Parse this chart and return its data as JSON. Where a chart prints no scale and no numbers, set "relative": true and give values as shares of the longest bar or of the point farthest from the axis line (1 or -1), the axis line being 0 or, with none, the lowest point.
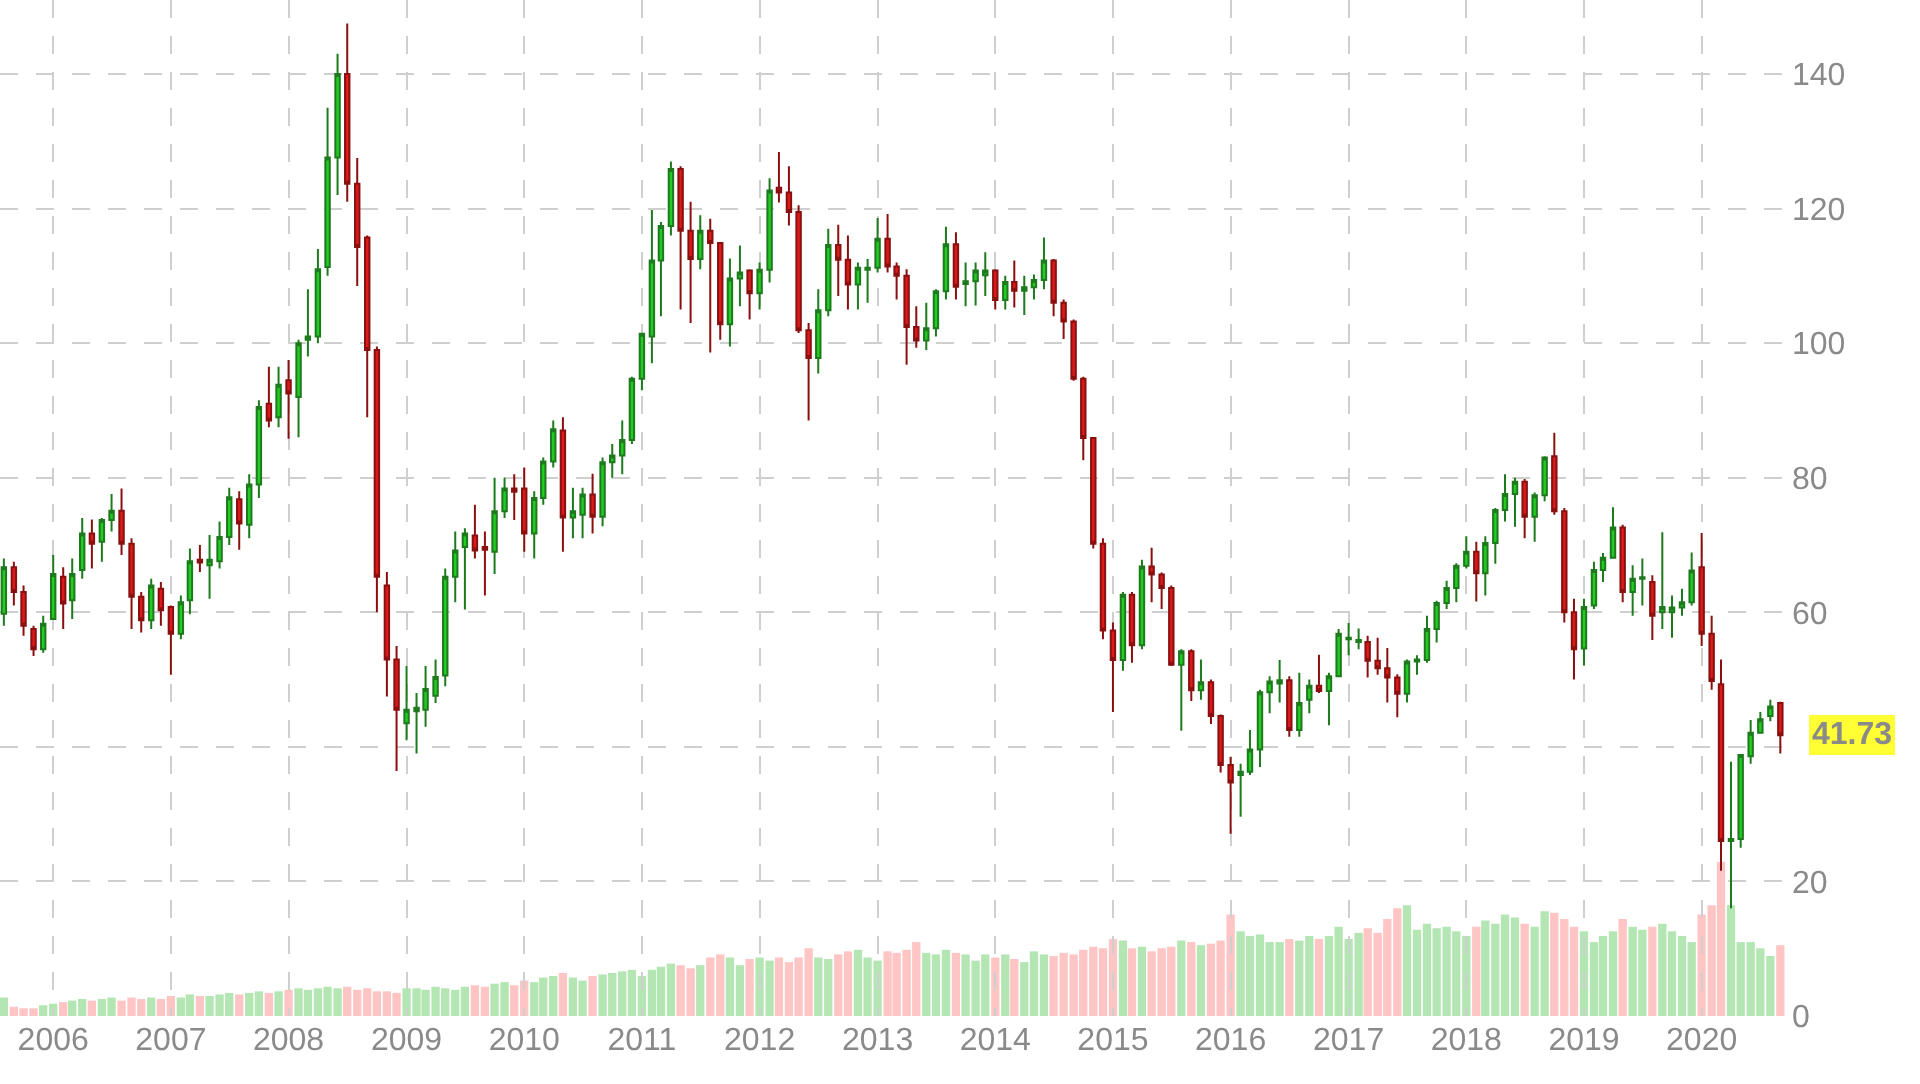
{
  "chart_data": [
    {
      "type": "candlestick",
      "x": [
        "2005-08",
        "2005-09",
        "2005-10",
        "2005-11",
        "2005-12",
        "2006-01",
        "2006-02",
        "2006-03",
        "2006-04",
        "2006-05",
        "2006-06",
        "2006-07",
        "2006-08",
        "2006-09",
        "2006-10",
        "2006-11",
        "2006-12",
        "2007-01",
        "2007-02",
        "2007-03",
        "2007-04",
        "2007-05",
        "2007-06",
        "2007-07",
        "2007-08",
        "2007-09",
        "2007-10",
        "2007-11",
        "2007-12",
        "2008-01",
        "2008-02",
        "2008-03",
        "2008-04",
        "2008-05",
        "2008-06",
        "2008-07",
        "2008-08",
        "2008-09",
        "2008-10",
        "2008-11",
        "2008-12",
        "2009-01",
        "2009-02",
        "2009-03",
        "2009-04",
        "2009-05",
        "2009-06",
        "2009-07",
        "2009-08",
        "2009-09",
        "2009-10",
        "2009-11",
        "2009-12",
        "2010-01",
        "2010-02",
        "2010-03",
        "2010-04",
        "2010-05",
        "2010-06",
        "2010-07",
        "2010-08",
        "2010-09",
        "2010-10",
        "2010-11",
        "2010-12",
        "2011-01",
        "2011-02",
        "2011-03",
        "2011-04",
        "2011-05",
        "2011-06",
        "2011-07",
        "2011-08",
        "2011-09",
        "2011-10",
        "2011-11",
        "2011-12",
        "2012-01",
        "2012-02",
        "2012-03",
        "2012-04",
        "2012-05",
        "2012-06",
        "2012-07",
        "2012-08",
        "2012-09",
        "2012-10",
        "2012-11",
        "2012-12",
        "2013-01",
        "2013-02",
        "2013-03",
        "2013-04",
        "2013-05",
        "2013-06",
        "2013-07",
        "2013-08",
        "2013-09",
        "2013-10",
        "2013-11",
        "2013-12",
        "2014-01",
        "2014-02",
        "2014-03",
        "2014-04",
        "2014-05",
        "2014-06",
        "2014-07",
        "2014-08",
        "2014-09",
        "2014-10",
        "2014-11",
        "2014-12",
        "2015-01",
        "2015-02",
        "2015-03",
        "2015-04",
        "2015-05",
        "2015-06",
        "2015-07",
        "2015-08",
        "2015-09",
        "2015-10",
        "2015-11",
        "2015-12",
        "2016-01",
        "2016-02",
        "2016-03",
        "2016-04",
        "2016-05",
        "2016-06",
        "2016-07",
        "2016-08",
        "2016-09",
        "2016-10",
        "2016-11",
        "2016-12",
        "2017-01",
        "2017-02",
        "2017-03",
        "2017-04",
        "2017-05",
        "2017-06",
        "2017-07",
        "2017-08",
        "2017-09",
        "2017-10",
        "2017-11",
        "2017-12",
        "2018-01",
        "2018-02",
        "2018-03",
        "2018-04",
        "2018-05",
        "2018-06",
        "2018-07",
        "2018-08",
        "2018-09",
        "2018-10",
        "2018-11",
        "2018-12",
        "2019-01",
        "2019-02",
        "2019-03",
        "2019-04",
        "2019-05",
        "2019-06",
        "2019-07",
        "2019-08",
        "2019-09",
        "2019-10",
        "2019-11",
        "2019-12",
        "2020-01",
        "2020-02",
        "2020-03",
        "2020-04",
        "2020-05",
        "2020-06",
        "2020-07",
        "2020-08",
        "2020-09"
      ],
      "ohlc": [
        [
          59.8,
          68,
          58,
          66.7
        ],
        [
          66.7,
          67.5,
          61,
          63
        ],
        [
          63,
          64,
          56.5,
          58
        ],
        [
          57.5,
          58,
          53.5,
          54.5
        ],
        [
          54.5,
          59.5,
          54,
          58.3
        ],
        [
          59,
          68.5,
          59,
          65.7
        ],
        [
          65.3,
          66.7,
          57.5,
          61.3
        ],
        [
          61.8,
          68,
          59,
          65.7
        ],
        [
          66.3,
          74,
          65,
          71.7
        ],
        [
          71.7,
          73.8,
          66.5,
          70.2
        ],
        [
          70.5,
          74,
          67.5,
          73.7
        ],
        [
          73.7,
          77.6,
          72,
          75.1
        ],
        [
          75.1,
          78.4,
          68.5,
          70.2
        ],
        [
          70.2,
          71,
          57.5,
          62.3
        ],
        [
          62.3,
          63,
          57,
          58.8
        ],
        [
          58.8,
          65,
          57.5,
          64
        ],
        [
          63.5,
          64.5,
          58,
          60.3
        ],
        [
          60.8,
          61,
          50.7,
          56.8
        ],
        [
          56.8,
          62.5,
          56,
          61.5
        ],
        [
          61.8,
          69.5,
          59.7,
          67.6
        ],
        [
          67.8,
          70,
          66,
          67.4
        ],
        [
          67,
          71.5,
          62,
          67.8
        ],
        [
          67.6,
          73.5,
          66.5,
          71.2
        ],
        [
          71.2,
          78.5,
          70,
          77.1
        ],
        [
          76.8,
          78,
          69.3,
          73.2
        ],
        [
          73,
          80.5,
          71,
          79
        ],
        [
          79,
          91.5,
          77,
          90.5
        ],
        [
          91,
          96.5,
          87.5,
          88.5
        ],
        [
          89,
          96.5,
          87.5,
          93.8
        ],
        [
          94.5,
          97.5,
          85.8,
          92.5
        ],
        [
          92,
          100.5,
          86,
          100
        ],
        [
          100.5,
          108,
          98,
          101
        ],
        [
          101,
          114,
          100,
          111
        ],
        [
          111.3,
          135,
          110,
          127.6
        ],
        [
          127.6,
          143,
          122,
          140
        ],
        [
          140,
          147.5,
          121,
          123.7
        ],
        [
          123.7,
          127.5,
          108.5,
          114.3
        ],
        [
          115.7,
          116,
          89,
          99
        ],
        [
          99,
          99.5,
          60,
          65.3
        ],
        [
          64,
          66,
          47.5,
          53
        ],
        [
          53,
          55,
          36.4,
          45.5
        ],
        [
          43.5,
          52,
          41,
          45.5
        ],
        [
          45.3,
          48,
          39,
          45.8
        ],
        [
          45.5,
          52,
          43,
          48.6
        ],
        [
          47.6,
          53,
          46.5,
          50.4
        ],
        [
          50.6,
          66.5,
          49,
          65.3
        ],
        [
          65.3,
          72,
          61.5,
          69.2
        ],
        [
          69.7,
          72.5,
          60.4,
          71.7
        ],
        [
          71.4,
          76,
          68,
          69.2
        ],
        [
          69.7,
          72,
          62.5,
          69.3
        ],
        [
          69,
          80,
          65.7,
          75
        ],
        [
          75,
          80,
          74,
          78.4
        ],
        [
          78.4,
          80.5,
          73.7,
          77.9
        ],
        [
          78.4,
          81.5,
          69,
          71.7
        ],
        [
          71.7,
          78,
          68,
          77
        ],
        [
          77,
          83,
          76,
          82.4
        ],
        [
          82.4,
          88.5,
          81.5,
          87.2
        ],
        [
          87,
          89,
          69,
          74.1
        ],
        [
          74.1,
          78.5,
          71,
          75
        ],
        [
          74.5,
          78.5,
          71,
          77.5
        ],
        [
          77.5,
          80.6,
          71.7,
          74.2
        ],
        [
          74.2,
          83,
          72.8,
          82.3
        ],
        [
          82.3,
          85,
          80,
          83.3
        ],
        [
          83.3,
          88.5,
          80.5,
          85.6
        ],
        [
          85.6,
          95,
          85,
          94.7
        ],
        [
          94.7,
          101.5,
          93,
          101.4
        ],
        [
          101,
          119.8,
          97,
          112.3
        ],
        [
          112.3,
          118,
          104,
          117.4
        ],
        [
          117.4,
          127,
          116,
          125.9
        ],
        [
          125.9,
          126.3,
          105,
          116.7
        ],
        [
          116.7,
          121,
          103,
          112.5
        ],
        [
          112.5,
          119,
          111,
          116.7
        ],
        [
          116.7,
          118.5,
          98.6,
          114.9
        ],
        [
          114.9,
          115,
          100.5,
          102.8
        ],
        [
          102.8,
          112.6,
          99.5,
          109.6
        ],
        [
          109.6,
          114.5,
          105.5,
          110.5
        ],
        [
          110.8,
          111,
          103.5,
          107.4
        ],
        [
          107.4,
          112,
          105,
          110.9
        ],
        [
          110.9,
          124.5,
          109,
          122.7
        ],
        [
          123.1,
          128.4,
          120.9,
          122.4
        ],
        [
          122.4,
          126.3,
          117.5,
          119.5
        ],
        [
          119.5,
          120.5,
          101.5,
          101.9
        ],
        [
          101.9,
          103,
          88.5,
          97.8
        ],
        [
          97.8,
          108,
          95.5,
          104.9
        ],
        [
          104.9,
          117,
          104,
          114.6
        ],
        [
          114.6,
          117.6,
          107,
          112.4
        ],
        [
          112.4,
          116,
          105,
          108.7
        ],
        [
          108.7,
          112,
          105,
          111.2
        ],
        [
          110.9,
          112.5,
          106,
          111.2
        ],
        [
          111.2,
          118.6,
          110.5,
          115.5
        ],
        [
          115.5,
          119.2,
          110.5,
          111.4
        ],
        [
          111.4,
          112,
          106.5,
          110
        ],
        [
          110,
          111,
          96.8,
          102.4
        ],
        [
          102.4,
          105.5,
          99.3,
          100.4
        ],
        [
          100.4,
          106,
          99,
          102.2
        ],
        [
          102.2,
          108,
          101,
          107.7
        ],
        [
          107.7,
          117.3,
          106.5,
          114.7
        ],
        [
          114.7,
          116.5,
          106.5,
          108.4
        ],
        [
          108.8,
          112,
          105.5,
          109.2
        ],
        [
          109.2,
          112,
          105.6,
          110.8
        ],
        [
          110.1,
          113.5,
          107,
          110.8
        ],
        [
          110.8,
          111,
          105,
          106.4
        ],
        [
          106.4,
          110,
          105,
          109.1
        ],
        [
          109.1,
          112.3,
          105.3,
          107.8
        ],
        [
          107.8,
          110,
          104.2,
          108.3
        ],
        [
          108.3,
          110.2,
          106.5,
          109.4
        ],
        [
          109.4,
          115.7,
          108,
          112.3
        ],
        [
          112.3,
          112.5,
          104,
          106
        ],
        [
          106,
          106.5,
          100.6,
          103.2
        ],
        [
          103.2,
          103.5,
          94.4,
          94.7
        ],
        [
          94.7,
          95,
          82.6,
          85.9
        ],
        [
          85.9,
          86,
          69.5,
          70.2
        ],
        [
          70.2,
          71,
          56,
          57.3
        ],
        [
          57.3,
          58.5,
          45.2,
          52.9
        ],
        [
          52.9,
          63,
          51.3,
          62.6
        ],
        [
          62.6,
          63,
          52.5,
          55.1
        ],
        [
          55.1,
          67.8,
          54.5,
          66.8
        ],
        [
          66.8,
          69.6,
          61.5,
          65.6
        ],
        [
          65.6,
          65.9,
          60.5,
          63.6
        ],
        [
          63.6,
          64,
          52,
          52.2
        ],
        [
          52.2,
          54.5,
          42.4,
          54.2
        ],
        [
          54.2,
          54.5,
          46.8,
          48.4
        ],
        [
          48.4,
          53,
          47,
          49.6
        ],
        [
          49.6,
          50,
          43.4,
          44.6
        ],
        [
          44.6,
          44.8,
          36.2,
          37.3
        ],
        [
          37.3,
          38.5,
          27.1,
          34.7
        ],
        [
          35.8,
          37.5,
          29.6,
          36.3
        ],
        [
          36.3,
          42.5,
          35.8,
          39.6
        ],
        [
          39.6,
          48.5,
          37,
          48.1
        ],
        [
          48.1,
          50.5,
          45,
          49.7
        ],
        [
          49.4,
          52.9,
          46.6,
          49.9
        ],
        [
          49.9,
          50.5,
          41.5,
          42.5
        ],
        [
          42.5,
          51,
          41.5,
          46.5
        ],
        [
          47,
          50,
          45,
          49.1
        ],
        [
          49.1,
          53.7,
          48,
          48.3
        ],
        [
          48.3,
          51,
          43.2,
          50.5
        ],
        [
          50.5,
          57.5,
          50.5,
          56.8
        ],
        [
          56,
          58.4,
          53.6,
          56.2
        ],
        [
          55.6,
          57.6,
          54.5,
          55.9
        ],
        [
          55.6,
          56.5,
          50.3,
          52.8
        ],
        [
          52.8,
          56.2,
          50.7,
          51.7
        ],
        [
          51.7,
          54.7,
          46.6,
          50.3
        ],
        [
          50.3,
          50.8,
          44.4,
          47.9
        ],
        [
          47.9,
          53,
          46.6,
          52.7
        ],
        [
          52.7,
          53.6,
          50.7,
          53
        ],
        [
          52.9,
          59.5,
          52.5,
          57.5
        ],
        [
          57.5,
          61.7,
          55.5,
          61.4
        ],
        [
          61.4,
          64.7,
          60.5,
          63.6
        ],
        [
          63.6,
          67.3,
          61.5,
          66.9
        ],
        [
          66.9,
          71.3,
          66.5,
          69
        ],
        [
          69,
          70.5,
          61.6,
          65.8
        ],
        [
          65.8,
          71.3,
          62.5,
          70.3
        ],
        [
          70.3,
          75.5,
          67.2,
          75.2
        ],
        [
          75.2,
          80.5,
          73.5,
          77.6
        ],
        [
          77.6,
          80,
          72.7,
          79.4
        ],
        [
          79.4,
          79.8,
          71,
          74.2
        ],
        [
          74.2,
          77.8,
          70.5,
          77.4
        ],
        [
          77.4,
          83.2,
          76.5,
          83
        ],
        [
          83.2,
          86.7,
          74.5,
          75
        ],
        [
          75,
          75.5,
          58.5,
          60
        ],
        [
          60,
          62,
          50,
          54.5
        ],
        [
          54.6,
          62,
          52.1,
          60.8
        ],
        [
          61,
          67.5,
          60.5,
          66.3
        ],
        [
          66.3,
          68.8,
          64.5,
          68.1
        ],
        [
          68.1,
          75.6,
          68,
          72.6
        ],
        [
          72.6,
          73,
          61.5,
          63
        ],
        [
          63,
          67,
          59.5,
          65
        ],
        [
          65,
          68,
          61,
          65.2
        ],
        [
          64.5,
          65.5,
          55.9,
          59.5
        ],
        [
          60,
          71.9,
          57.5,
          60.8
        ],
        [
          60,
          62.5,
          56.2,
          60.7
        ],
        [
          60.7,
          63.5,
          59.5,
          61.5
        ],
        [
          61.5,
          68.9,
          61,
          66.2
        ],
        [
          66.7,
          71.8,
          55,
          56.8
        ],
        [
          56.8,
          59.5,
          48.5,
          49.8
        ],
        [
          49.3,
          53,
          21.6,
          26
        ],
        [
          26,
          37.8,
          16,
          26.3
        ],
        [
          26.3,
          38.8,
          25,
          38.8
        ],
        [
          38.6,
          44,
          37.5,
          42.1
        ],
        [
          42.1,
          45.2,
          42,
          44.1
        ],
        [
          44.6,
          47,
          43.8,
          46
        ],
        [
          46.5,
          46.7,
          39,
          41.73
        ]
      ],
      "xlim": [
        "2005-07-20",
        "2020-10-01"
      ],
      "xticks": [
        {
          "value": "2006-01",
          "label": "2006"
        },
        {
          "value": "2007-01",
          "label": "2007"
        },
        {
          "value": "2008-01",
          "label": "2008"
        },
        {
          "value": "2009-01",
          "label": "2009"
        },
        {
          "value": "2010-01",
          "label": "2010"
        },
        {
          "value": "2011-01",
          "label": "2011"
        },
        {
          "value": "2012-01",
          "label": "2012"
        },
        {
          "value": "2013-01",
          "label": "2013"
        },
        {
          "value": "2014-01",
          "label": "2014"
        },
        {
          "value": "2015-01",
          "label": "2015"
        },
        {
          "value": "2016-01",
          "label": "2016"
        },
        {
          "value": "2017-01",
          "label": "2017"
        },
        {
          "value": "2018-01",
          "label": "2018"
        },
        {
          "value": "2019-01",
          "label": "2019"
        },
        {
          "value": "2020-01",
          "label": "2020"
        }
      ],
      "ylim": [
        0,
        151
      ],
      "yticks": [
        0,
        20,
        {
          "value": 40,
          "label": null
        },
        60,
        80,
        100,
        120,
        140
      ],
      "grid": true,
      "annotations": [
        {
          "text": "41.73",
          "x": "2020-09",
          "y": 41.73
        }
      ]
    },
    {
      "type": "bar",
      "relative": true,
      "x": [
        "2005-08",
        "2005-09",
        "2005-10",
        "2005-11",
        "2005-12",
        "2006-01",
        "2006-02",
        "2006-03",
        "2006-04",
        "2006-05",
        "2006-06",
        "2006-07",
        "2006-08",
        "2006-09",
        "2006-10",
        "2006-11",
        "2006-12",
        "2007-01",
        "2007-02",
        "2007-03",
        "2007-04",
        "2007-05",
        "2007-06",
        "2007-07",
        "2007-08",
        "2007-09",
        "2007-10",
        "2007-11",
        "2007-12",
        "2008-01",
        "2008-02",
        "2008-03",
        "2008-04",
        "2008-05",
        "2008-06",
        "2008-07",
        "2008-08",
        "2008-09",
        "2008-10",
        "2008-11",
        "2008-12",
        "2009-01",
        "2009-02",
        "2009-03",
        "2009-04",
        "2009-05",
        "2009-06",
        "2009-07",
        "2009-08",
        "2009-09",
        "2009-10",
        "2009-11",
        "2009-12",
        "2010-01",
        "2010-02",
        "2010-03",
        "2010-04",
        "2010-05",
        "2010-06",
        "2010-07",
        "2010-08",
        "2010-09",
        "2010-10",
        "2010-11",
        "2010-12",
        "2011-01",
        "2011-02",
        "2011-03",
        "2011-04",
        "2011-05",
        "2011-06",
        "2011-07",
        "2011-08",
        "2011-09",
        "2011-10",
        "2011-11",
        "2011-12",
        "2012-01",
        "2012-02",
        "2012-03",
        "2012-04",
        "2012-05",
        "2012-06",
        "2012-07",
        "2012-08",
        "2012-09",
        "2012-10",
        "2012-11",
        "2012-12",
        "2013-01",
        "2013-02",
        "2013-03",
        "2013-04",
        "2013-05",
        "2013-06",
        "2013-07",
        "2013-08",
        "2013-09",
        "2013-10",
        "2013-11",
        "2013-12",
        "2014-01",
        "2014-02",
        "2014-03",
        "2014-04",
        "2014-05",
        "2014-06",
        "2014-07",
        "2014-08",
        "2014-09",
        "2014-10",
        "2014-11",
        "2014-12",
        "2015-01",
        "2015-02",
        "2015-03",
        "2015-04",
        "2015-05",
        "2015-06",
        "2015-07",
        "2015-08",
        "2015-09",
        "2015-10",
        "2015-11",
        "2015-12",
        "2016-01",
        "2016-02",
        "2016-03",
        "2016-04",
        "2016-05",
        "2016-06",
        "2016-07",
        "2016-08",
        "2016-09",
        "2016-10",
        "2016-11",
        "2016-12",
        "2017-01",
        "2017-02",
        "2017-03",
        "2017-04",
        "2017-05",
        "2017-06",
        "2017-07",
        "2017-08",
        "2017-09",
        "2017-10",
        "2017-11",
        "2017-12",
        "2018-01",
        "2018-02",
        "2018-03",
        "2018-04",
        "2018-05",
        "2018-06",
        "2018-07",
        "2018-08",
        "2018-09",
        "2018-10",
        "2018-11",
        "2018-12",
        "2019-01",
        "2019-02",
        "2019-03",
        "2019-04",
        "2019-05",
        "2019-06",
        "2019-07",
        "2019-08",
        "2019-09",
        "2019-10",
        "2019-11",
        "2019-12",
        "2020-01",
        "2020-02",
        "2020-03",
        "2020-04",
        "2020-05",
        "2020-06",
        "2020-07",
        "2020-08",
        "2020-09"
      ],
      "values": [
        0.12,
        0.06,
        0.05,
        0.05,
        0.07,
        0.08,
        0.09,
        0.1,
        0.11,
        0.1,
        0.11,
        0.12,
        0.1,
        0.12,
        0.11,
        0.12,
        0.11,
        0.13,
        0.12,
        0.14,
        0.13,
        0.13,
        0.14,
        0.15,
        0.14,
        0.15,
        0.16,
        0.15,
        0.16,
        0.17,
        0.18,
        0.17,
        0.18,
        0.19,
        0.18,
        0.19,
        0.17,
        0.18,
        0.16,
        0.16,
        0.15,
        0.18,
        0.18,
        0.17,
        0.19,
        0.18,
        0.17,
        0.19,
        0.2,
        0.19,
        0.21,
        0.22,
        0.2,
        0.23,
        0.22,
        0.25,
        0.26,
        0.28,
        0.25,
        0.23,
        0.26,
        0.27,
        0.28,
        0.29,
        0.3,
        0.26,
        0.3,
        0.32,
        0.34,
        0.33,
        0.31,
        0.33,
        0.38,
        0.4,
        0.38,
        0.33,
        0.37,
        0.38,
        0.36,
        0.38,
        0.35,
        0.38,
        0.44,
        0.38,
        0.37,
        0.4,
        0.42,
        0.43,
        0.38,
        0.36,
        0.42,
        0.41,
        0.43,
        0.48,
        0.41,
        0.4,
        0.43,
        0.41,
        0.4,
        0.36,
        0.4,
        0.38,
        0.4,
        0.37,
        0.35,
        0.42,
        0.4,
        0.39,
        0.41,
        0.4,
        0.43,
        0.45,
        0.44,
        0.5,
        0.49,
        0.44,
        0.45,
        0.42,
        0.44,
        0.45,
        0.49,
        0.48,
        0.46,
        0.47,
        0.49,
        0.66,
        0.55,
        0.52,
        0.53,
        0.48,
        0.48,
        0.5,
        0.49,
        0.52,
        0.5,
        0.52,
        0.58,
        0.5,
        0.54,
        0.57,
        0.54,
        0.63,
        0.7,
        0.72,
        0.56,
        0.6,
        0.57,
        0.58,
        0.55,
        0.52,
        0.58,
        0.62,
        0.6,
        0.66,
        0.64,
        0.6,
        0.58,
        0.68,
        0.67,
        0.63,
        0.58,
        0.55,
        0.48,
        0.52,
        0.55,
        0.63,
        0.58,
        0.56,
        0.58,
        0.6,
        0.55,
        0.52,
        0.48,
        0.66,
        0.72,
        1,
        0.72,
        0.48,
        0.48,
        0.44,
        0.39,
        0.46
      ],
      "colors": [
        "#b3e6b3",
        "#ffc4c4",
        "#ffc4c4",
        "#ffc4c4",
        "#b3e6b3",
        "#b3e6b3",
        "#ffc4c4",
        "#b3e6b3",
        "#b3e6b3",
        "#ffc4c4",
        "#b3e6b3",
        "#b3e6b3",
        "#ffc4c4",
        "#ffc4c4",
        "#ffc4c4",
        "#b3e6b3",
        "#ffc4c4",
        "#ffc4c4",
        "#b3e6b3",
        "#b3e6b3",
        "#ffc4c4",
        "#b3e6b3",
        "#b3e6b3",
        "#b3e6b3",
        "#ffc4c4",
        "#b3e6b3",
        "#b3e6b3",
        "#ffc4c4",
        "#b3e6b3",
        "#ffc4c4",
        "#b3e6b3",
        "#b3e6b3",
        "#b3e6b3",
        "#b3e6b3",
        "#b3e6b3",
        "#ffc4c4",
        "#ffc4c4",
        "#ffc4c4",
        "#ffc4c4",
        "#ffc4c4",
        "#ffc4c4",
        "#b3e6b3",
        "#b3e6b3",
        "#b3e6b3",
        "#b3e6b3",
        "#b3e6b3",
        "#b3e6b3",
        "#b3e6b3",
        "#ffc4c4",
        "#ffc4c4",
        "#b3e6b3",
        "#b3e6b3",
        "#ffc4c4",
        "#ffc4c4",
        "#b3e6b3",
        "#b3e6b3",
        "#b3e6b3",
        "#ffc4c4",
        "#b3e6b3",
        "#b3e6b3",
        "#ffc4c4",
        "#b3e6b3",
        "#b3e6b3",
        "#b3e6b3",
        "#b3e6b3",
        "#b3e6b3",
        "#b3e6b3",
        "#b3e6b3",
        "#b3e6b3",
        "#ffc4c4",
        "#ffc4c4",
        "#b3e6b3",
        "#ffc4c4",
        "#ffc4c4",
        "#b3e6b3",
        "#b3e6b3",
        "#ffc4c4",
        "#b3e6b3",
        "#b3e6b3",
        "#ffc4c4",
        "#ffc4c4",
        "#ffc4c4",
        "#ffc4c4",
        "#b3e6b3",
        "#b3e6b3",
        "#ffc4c4",
        "#ffc4c4",
        "#b3e6b3",
        "#b3e6b3",
        "#b3e6b3",
        "#ffc4c4",
        "#ffc4c4",
        "#ffc4c4",
        "#ffc4c4",
        "#b3e6b3",
        "#b3e6b3",
        "#b3e6b3",
        "#ffc4c4",
        "#b3e6b3",
        "#b3e6b3",
        "#b3e6b3",
        "#ffc4c4",
        "#b3e6b3",
        "#ffc4c4",
        "#b3e6b3",
        "#b3e6b3",
        "#b3e6b3",
        "#ffc4c4",
        "#ffc4c4",
        "#ffc4c4",
        "#ffc4c4",
        "#ffc4c4",
        "#ffc4c4",
        "#ffc4c4",
        "#b3e6b3",
        "#ffc4c4",
        "#b3e6b3",
        "#ffc4c4",
        "#ffc4c4",
        "#ffc4c4",
        "#b3e6b3",
        "#ffc4c4",
        "#b3e6b3",
        "#ffc4c4",
        "#ffc4c4",
        "#ffc4c4",
        "#b3e6b3",
        "#b3e6b3",
        "#b3e6b3",
        "#b3e6b3",
        "#b3e6b3",
        "#ffc4c4",
        "#b3e6b3",
        "#b3e6b3",
        "#ffc4c4",
        "#b3e6b3",
        "#b3e6b3",
        "#b3e6b3",
        "#b3e6b3",
        "#ffc4c4",
        "#ffc4c4",
        "#ffc4c4",
        "#ffc4c4",
        "#b3e6b3",
        "#b3e6b3",
        "#b3e6b3",
        "#b3e6b3",
        "#b3e6b3",
        "#b3e6b3",
        "#b3e6b3",
        "#ffc4c4",
        "#b3e6b3",
        "#b3e6b3",
        "#b3e6b3",
        "#b3e6b3",
        "#ffc4c4",
        "#b3e6b3",
        "#b3e6b3",
        "#ffc4c4",
        "#ffc4c4",
        "#ffc4c4",
        "#b3e6b3",
        "#b3e6b3",
        "#b3e6b3",
        "#b3e6b3",
        "#ffc4c4",
        "#b3e6b3",
        "#b3e6b3",
        "#ffc4c4",
        "#b3e6b3",
        "#b3e6b3",
        "#b3e6b3",
        "#b3e6b3",
        "#ffc4c4",
        "#ffc4c4",
        "#ffc4c4",
        "#b3e6b3",
        "#b3e6b3",
        "#b3e6b3",
        "#b3e6b3",
        "#b3e6b3",
        "#ffc4c4"
      ],
      "xlim": [
        "2005-07-20",
        "2020-10-01"
      ]
    }
  ]
}
